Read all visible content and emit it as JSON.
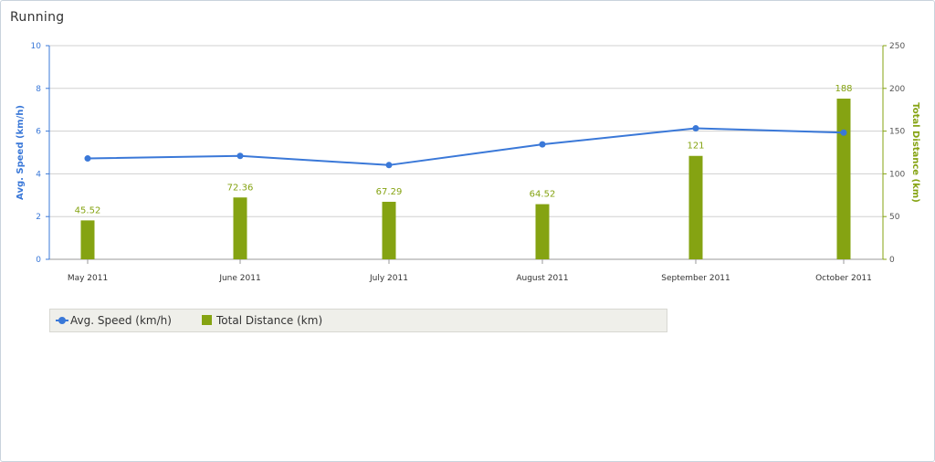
{
  "panel": {
    "title": "Running"
  },
  "legend": {
    "items": [
      {
        "label": "Avg. Speed (km/h)",
        "icon": "line-marker-icon"
      },
      {
        "label": "Total Distance (km)",
        "icon": "square-marker-icon"
      }
    ]
  },
  "colors": {
    "speed": "#3a78d8",
    "distance": "#85a312",
    "grid": "#d0d0d0"
  },
  "chart_data": {
    "type": "bar-line-combo",
    "categories": [
      "May 2011",
      "June 2011",
      "July 2011",
      "August 2011",
      "September 2011",
      "October 2011"
    ],
    "series": [
      {
        "name": "Avg. Speed (km/h)",
        "type": "line",
        "axis": "left",
        "values": [
          4.72,
          4.84,
          4.41,
          5.38,
          6.13,
          5.93
        ]
      },
      {
        "name": "Total Distance (km)",
        "type": "bar",
        "axis": "right",
        "values": [
          45.52,
          72.36,
          67.29,
          64.52,
          121,
          188
        ],
        "data_labels": [
          "45.52",
          "72.36",
          "67.29",
          "64.52",
          "121",
          "188"
        ]
      }
    ],
    "y_left": {
      "label": "Avg. Speed (km/h)",
      "range": [
        0,
        10
      ],
      "ticks": [
        "0",
        "2",
        "4",
        "6",
        "8",
        "10"
      ]
    },
    "y_right": {
      "label": "Total Distance (km)",
      "range": [
        0,
        250
      ],
      "ticks": [
        "0",
        "50",
        "100",
        "150",
        "200",
        "250"
      ]
    },
    "grid": true,
    "legend_position": "bottom-left"
  }
}
